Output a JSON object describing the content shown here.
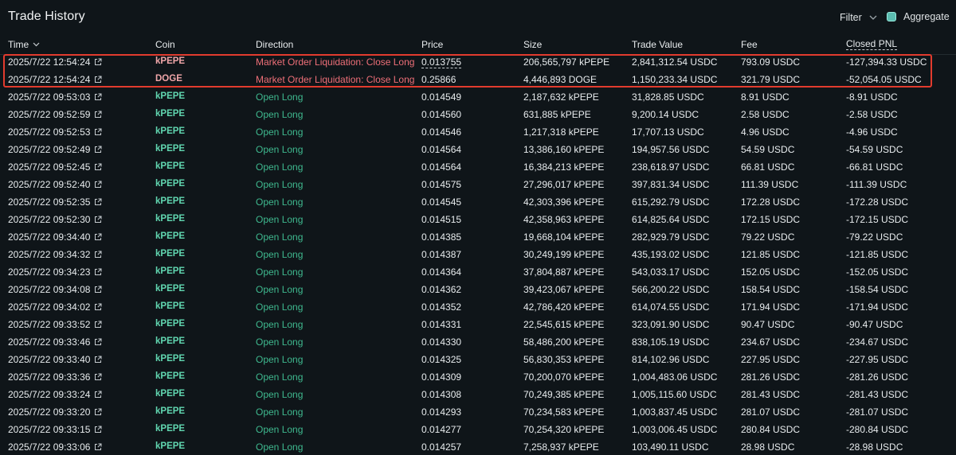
{
  "header": {
    "title": "Trade History",
    "filter_label": "Filter",
    "aggregate_label": "Aggregate"
  },
  "columns": {
    "time": "Time",
    "coin": "Coin",
    "direction": "Direction",
    "price": "Price",
    "size": "Size",
    "trade_value": "Trade Value",
    "fee": "Fee",
    "closed_pnl": "Closed PNL"
  },
  "colors": {
    "long_green": "#3fb98f",
    "liquidation_red": "#ee6f78",
    "highlight_box": "#e23b2e"
  },
  "rows": [
    {
      "time": "2025/7/22 12:54:24",
      "coin": "kPEPE",
      "direction": "Market Order Liquidation: Close Long",
      "price": "0.013755",
      "size": "206,565,797 kPEPE",
      "value": "2,841,312.54 USDC",
      "fee": "793.09 USDC",
      "pnl": "-127,394.33 USDC",
      "type": "liq"
    },
    {
      "time": "2025/7/22 12:54:24",
      "coin": "DOGE",
      "direction": "Market Order Liquidation: Close Long",
      "price": "0.25866",
      "size": "4,446,893 DOGE",
      "value": "1,150,233.34 USDC",
      "fee": "321.79 USDC",
      "pnl": "-52,054.05 USDC",
      "type": "liq"
    },
    {
      "time": "2025/7/22 09:53:03",
      "coin": "kPEPE",
      "direction": "Open Long",
      "price": "0.014549",
      "size": "2,187,632 kPEPE",
      "value": "31,828.85 USDC",
      "fee": "8.91 USDC",
      "pnl": "-8.91 USDC",
      "type": "long"
    },
    {
      "time": "2025/7/22 09:52:59",
      "coin": "kPEPE",
      "direction": "Open Long",
      "price": "0.014560",
      "size": "631,885 kPEPE",
      "value": "9,200.14 USDC",
      "fee": "2.58 USDC",
      "pnl": "-2.58 USDC",
      "type": "long"
    },
    {
      "time": "2025/7/22 09:52:53",
      "coin": "kPEPE",
      "direction": "Open Long",
      "price": "0.014546",
      "size": "1,217,318 kPEPE",
      "value": "17,707.13 USDC",
      "fee": "4.96 USDC",
      "pnl": "-4.96 USDC",
      "type": "long"
    },
    {
      "time": "2025/7/22 09:52:49",
      "coin": "kPEPE",
      "direction": "Open Long",
      "price": "0.014564",
      "size": "13,386,160 kPEPE",
      "value": "194,957.56 USDC",
      "fee": "54.59 USDC",
      "pnl": "-54.59 USDC",
      "type": "long"
    },
    {
      "time": "2025/7/22 09:52:45",
      "coin": "kPEPE",
      "direction": "Open Long",
      "price": "0.014564",
      "size": "16,384,213 kPEPE",
      "value": "238,618.97 USDC",
      "fee": "66.81 USDC",
      "pnl": "-66.81 USDC",
      "type": "long"
    },
    {
      "time": "2025/7/22 09:52:40",
      "coin": "kPEPE",
      "direction": "Open Long",
      "price": "0.014575",
      "size": "27,296,017 kPEPE",
      "value": "397,831.34 USDC",
      "fee": "111.39 USDC",
      "pnl": "-111.39 USDC",
      "type": "long"
    },
    {
      "time": "2025/7/22 09:52:35",
      "coin": "kPEPE",
      "direction": "Open Long",
      "price": "0.014545",
      "size": "42,303,396 kPEPE",
      "value": "615,292.79 USDC",
      "fee": "172.28 USDC",
      "pnl": "-172.28 USDC",
      "type": "long"
    },
    {
      "time": "2025/7/22 09:52:30",
      "coin": "kPEPE",
      "direction": "Open Long",
      "price": "0.014515",
      "size": "42,358,963 kPEPE",
      "value": "614,825.64 USDC",
      "fee": "172.15 USDC",
      "pnl": "-172.15 USDC",
      "type": "long"
    },
    {
      "time": "2025/7/22 09:34:40",
      "coin": "kPEPE",
      "direction": "Open Long",
      "price": "0.014385",
      "size": "19,668,104 kPEPE",
      "value": "282,929.79 USDC",
      "fee": "79.22 USDC",
      "pnl": "-79.22 USDC",
      "type": "long"
    },
    {
      "time": "2025/7/22 09:34:32",
      "coin": "kPEPE",
      "direction": "Open Long",
      "price": "0.014387",
      "size": "30,249,199 kPEPE",
      "value": "435,193.02 USDC",
      "fee": "121.85 USDC",
      "pnl": "-121.85 USDC",
      "type": "long"
    },
    {
      "time": "2025/7/22 09:34:23",
      "coin": "kPEPE",
      "direction": "Open Long",
      "price": "0.014364",
      "size": "37,804,887 kPEPE",
      "value": "543,033.17 USDC",
      "fee": "152.05 USDC",
      "pnl": "-152.05 USDC",
      "type": "long"
    },
    {
      "time": "2025/7/22 09:34:08",
      "coin": "kPEPE",
      "direction": "Open Long",
      "price": "0.014362",
      "size": "39,423,067 kPEPE",
      "value": "566,200.22 USDC",
      "fee": "158.54 USDC",
      "pnl": "-158.54 USDC",
      "type": "long"
    },
    {
      "time": "2025/7/22 09:34:02",
      "coin": "kPEPE",
      "direction": "Open Long",
      "price": "0.014352",
      "size": "42,786,420 kPEPE",
      "value": "614,074.55 USDC",
      "fee": "171.94 USDC",
      "pnl": "-171.94 USDC",
      "type": "long"
    },
    {
      "time": "2025/7/22 09:33:52",
      "coin": "kPEPE",
      "direction": "Open Long",
      "price": "0.014331",
      "size": "22,545,615 kPEPE",
      "value": "323,091.90 USDC",
      "fee": "90.47 USDC",
      "pnl": "-90.47 USDC",
      "type": "long"
    },
    {
      "time": "2025/7/22 09:33:46",
      "coin": "kPEPE",
      "direction": "Open Long",
      "price": "0.014330",
      "size": "58,486,200 kPEPE",
      "value": "838,105.19 USDC",
      "fee": "234.67 USDC",
      "pnl": "-234.67 USDC",
      "type": "long"
    },
    {
      "time": "2025/7/22 09:33:40",
      "coin": "kPEPE",
      "direction": "Open Long",
      "price": "0.014325",
      "size": "56,830,353 kPEPE",
      "value": "814,102.96 USDC",
      "fee": "227.95 USDC",
      "pnl": "-227.95 USDC",
      "type": "long"
    },
    {
      "time": "2025/7/22 09:33:36",
      "coin": "kPEPE",
      "direction": "Open Long",
      "price": "0.014309",
      "size": "70,200,070 kPEPE",
      "value": "1,004,483.06 USDC",
      "fee": "281.26 USDC",
      "pnl": "-281.26 USDC",
      "type": "long"
    },
    {
      "time": "2025/7/22 09:33:24",
      "coin": "kPEPE",
      "direction": "Open Long",
      "price": "0.014308",
      "size": "70,249,385 kPEPE",
      "value": "1,005,115.60 USDC",
      "fee": "281.43 USDC",
      "pnl": "-281.43 USDC",
      "type": "long"
    },
    {
      "time": "2025/7/22 09:33:20",
      "coin": "kPEPE",
      "direction": "Open Long",
      "price": "0.014293",
      "size": "70,234,583 kPEPE",
      "value": "1,003,837.45 USDC",
      "fee": "281.07 USDC",
      "pnl": "-281.07 USDC",
      "type": "long"
    },
    {
      "time": "2025/7/22 09:33:15",
      "coin": "kPEPE",
      "direction": "Open Long",
      "price": "0.014277",
      "size": "70,254,320 kPEPE",
      "value": "1,003,006.45 USDC",
      "fee": "280.84 USDC",
      "pnl": "-280.84 USDC",
      "type": "long"
    },
    {
      "time": "2025/7/22 09:33:06",
      "coin": "kPEPE",
      "direction": "Open Long",
      "price": "0.014257",
      "size": "7,258,937 kPEPE",
      "value": "103,490.11 USDC",
      "fee": "28.98 USDC",
      "pnl": "-28.98 USDC",
      "type": "long"
    }
  ]
}
